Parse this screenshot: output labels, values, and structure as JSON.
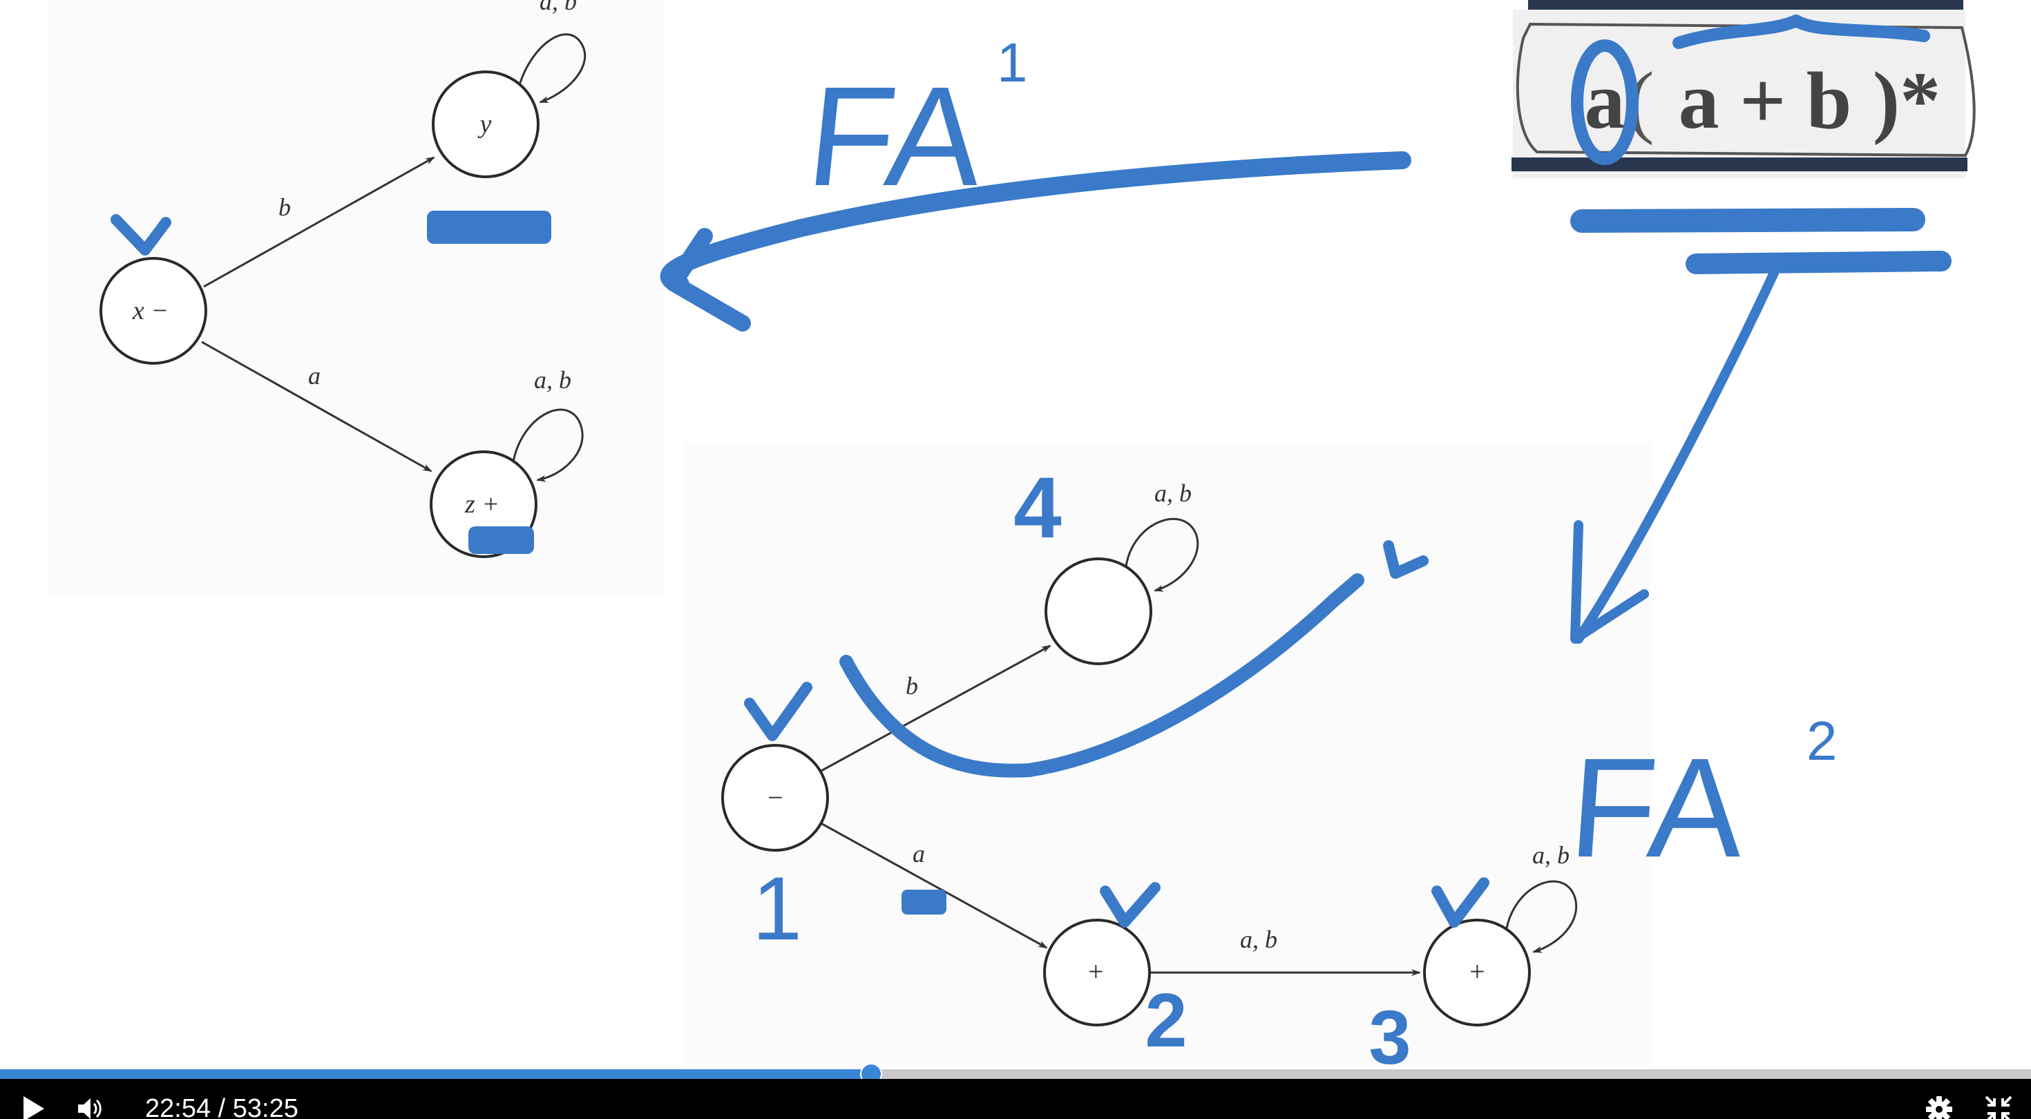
{
  "board": {
    "fa1": {
      "start_state": "x −",
      "state_y": "y",
      "state_z": "z +",
      "edge_b": "b",
      "edge_a": "a",
      "loop_y": "a, b",
      "loop_z": "a, b"
    },
    "regex": {
      "first": "a",
      "open": "(",
      "body": "a + b",
      "close": ")*"
    },
    "fa2": {
      "start_state": "−",
      "accept_state_1": "+",
      "accept_state_2": "+",
      "edge_b": "b",
      "edge_a": "a",
      "edge_ab": "a, b",
      "loop_top": "a, b",
      "loop_right": "a, b"
    },
    "handwriting": {
      "label_fa1": "FA",
      "label_fa1_sup": "1",
      "label_fa2": "FA",
      "label_fa2_sup": "2",
      "num_4": "4",
      "num_1": "1",
      "num_2": "2",
      "num_3": "3"
    }
  },
  "player": {
    "progress_fraction": 0.429,
    "current_time": "22:54",
    "separator": " / ",
    "total_time": "53:25",
    "icons": {
      "play": "play-icon",
      "volume": "volume-icon",
      "settings": "gear-icon",
      "exit_fullscreen": "exit-fullscreen-icon"
    },
    "colors": {
      "accent": "#3a86d6",
      "ink": "#3a7ac8",
      "bar": "#000000"
    }
  }
}
